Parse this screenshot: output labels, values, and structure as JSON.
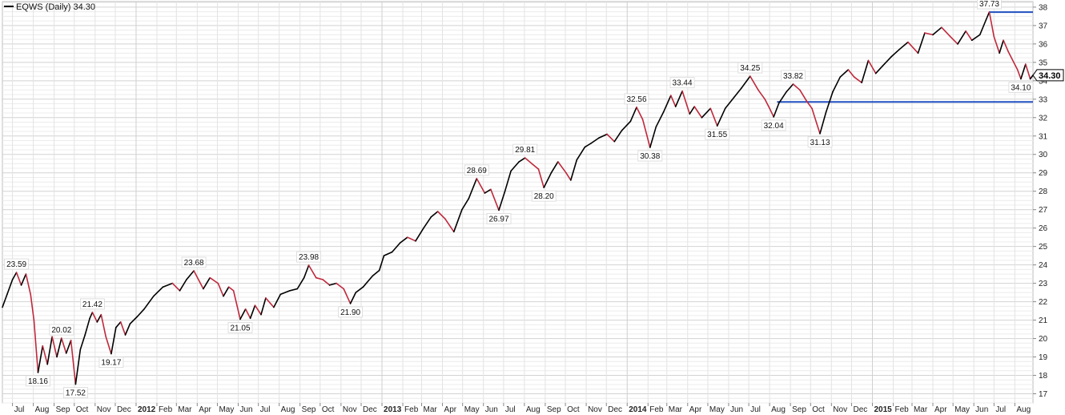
{
  "chart_data": {
    "type": "line",
    "title": "EQWS (Daily) 34.30",
    "legend": {
      "symbol": "EQWS",
      "interval": "(Daily)",
      "last": "34.30"
    },
    "last_price": 34.3,
    "ylim": [
      16.5,
      38.3
    ],
    "y_ticks": [
      17,
      18,
      19,
      20,
      21,
      22,
      23,
      24,
      25,
      26,
      27,
      28,
      29,
      30,
      31,
      32,
      33,
      34,
      35,
      36,
      37,
      38
    ],
    "x_ticks": [
      {
        "label": "Jul",
        "x": "2011-07-01"
      },
      {
        "label": "Aug",
        "x": "2011-08-01"
      },
      {
        "label": "Sep",
        "x": "2011-09-01"
      },
      {
        "label": "Oct",
        "x": "2011-10-01"
      },
      {
        "label": "Nov",
        "x": "2011-11-01"
      },
      {
        "label": "Dec",
        "x": "2011-12-01"
      },
      {
        "label": "2012",
        "x": "2012-01-01",
        "year": true
      },
      {
        "label": "Feb",
        "x": "2012-02-01"
      },
      {
        "label": "Mar",
        "x": "2012-03-01"
      },
      {
        "label": "Apr",
        "x": "2012-04-01"
      },
      {
        "label": "May",
        "x": "2012-05-01"
      },
      {
        "label": "Jun",
        "x": "2012-06-01"
      },
      {
        "label": "Jul",
        "x": "2012-07-01"
      },
      {
        "label": "Aug",
        "x": "2012-08-01"
      },
      {
        "label": "Sep",
        "x": "2012-09-01"
      },
      {
        "label": "Oct",
        "x": "2012-10-01"
      },
      {
        "label": "Nov",
        "x": "2012-11-01"
      },
      {
        "label": "Dec",
        "x": "2012-12-01"
      },
      {
        "label": "2013",
        "x": "2013-01-01",
        "year": true
      },
      {
        "label": "Feb",
        "x": "2013-02-01"
      },
      {
        "label": "Mar",
        "x": "2013-03-01"
      },
      {
        "label": "Apr",
        "x": "2013-04-01"
      },
      {
        "label": "May",
        "x": "2013-05-01"
      },
      {
        "label": "Jun",
        "x": "2013-06-01"
      },
      {
        "label": "Jul",
        "x": "2013-07-01"
      },
      {
        "label": "Aug",
        "x": "2013-08-01"
      },
      {
        "label": "Sep",
        "x": "2013-09-01"
      },
      {
        "label": "Oct",
        "x": "2013-10-01"
      },
      {
        "label": "Nov",
        "x": "2013-11-01"
      },
      {
        "label": "Dec",
        "x": "2013-12-01"
      },
      {
        "label": "2014",
        "x": "2014-01-01",
        "year": true
      },
      {
        "label": "Feb",
        "x": "2014-02-01"
      },
      {
        "label": "Mar",
        "x": "2014-03-01"
      },
      {
        "label": "Apr",
        "x": "2014-04-01"
      },
      {
        "label": "May",
        "x": "2014-05-01"
      },
      {
        "label": "Jun",
        "x": "2014-06-01"
      },
      {
        "label": "Jul",
        "x": "2014-07-01"
      },
      {
        "label": "Aug",
        "x": "2014-08-01"
      },
      {
        "label": "Sep",
        "x": "2014-09-01"
      },
      {
        "label": "Oct",
        "x": "2014-10-01"
      },
      {
        "label": "Nov",
        "x": "2014-11-01"
      },
      {
        "label": "Dec",
        "x": "2014-12-01"
      },
      {
        "label": "2015",
        "x": "2015-01-01",
        "year": true
      },
      {
        "label": "Feb",
        "x": "2015-02-01"
      },
      {
        "label": "Mar",
        "x": "2015-03-01"
      },
      {
        "label": "Apr",
        "x": "2015-04-01"
      },
      {
        "label": "May",
        "x": "2015-05-01"
      },
      {
        "label": "Jun",
        "x": "2015-06-01"
      },
      {
        "label": "Jul",
        "x": "2015-07-01"
      },
      {
        "label": "Aug",
        "x": "2015-08-01"
      }
    ],
    "x_range": [
      "2011-06-16",
      "2015-08-28"
    ],
    "grid": true,
    "y_axis_side": "right",
    "colors": {
      "up": "#000000",
      "down": "#c0283c",
      "support": "#1f4fbf",
      "grid": "#dcdcdc"
    },
    "series": [
      {
        "points": [
          [
            "2011-06-16",
            21.7
          ],
          [
            "2011-06-23",
            22.4
          ],
          [
            "2011-07-01",
            23.2
          ],
          [
            "2011-07-07",
            23.59
          ],
          [
            "2011-07-14",
            22.9
          ],
          [
            "2011-07-21",
            23.5
          ],
          [
            "2011-07-28",
            22.4
          ],
          [
            "2011-08-02",
            21.0
          ],
          [
            "2011-08-08",
            18.16
          ],
          [
            "2011-08-15",
            19.6
          ],
          [
            "2011-08-22",
            18.6
          ],
          [
            "2011-08-29",
            20.1
          ],
          [
            "2011-09-05",
            19.0
          ],
          [
            "2011-09-12",
            20.02
          ],
          [
            "2011-09-19",
            19.2
          ],
          [
            "2011-09-26",
            19.9
          ],
          [
            "2011-10-03",
            17.52
          ],
          [
            "2011-10-10",
            19.4
          ],
          [
            "2011-10-17",
            20.2
          ],
          [
            "2011-10-24",
            21.1
          ],
          [
            "2011-10-28",
            21.42
          ],
          [
            "2011-11-04",
            20.9
          ],
          [
            "2011-11-10",
            21.3
          ],
          [
            "2011-11-17",
            20.1
          ],
          [
            "2011-11-25",
            19.17
          ],
          [
            "2011-12-02",
            20.6
          ],
          [
            "2011-12-09",
            20.9
          ],
          [
            "2011-12-16",
            20.2
          ],
          [
            "2011-12-23",
            20.8
          ],
          [
            "2012-01-03",
            21.2
          ],
          [
            "2012-01-13",
            21.6
          ],
          [
            "2012-01-27",
            22.3
          ],
          [
            "2012-02-10",
            22.8
          ],
          [
            "2012-02-24",
            23.0
          ],
          [
            "2012-03-06",
            22.6
          ],
          [
            "2012-03-16",
            23.2
          ],
          [
            "2012-03-27",
            23.68
          ],
          [
            "2012-04-10",
            22.7
          ],
          [
            "2012-04-20",
            23.3
          ],
          [
            "2012-05-02",
            23.0
          ],
          [
            "2012-05-10",
            22.3
          ],
          [
            "2012-05-18",
            22.8
          ],
          [
            "2012-05-25",
            22.6
          ],
          [
            "2012-06-04",
            21.05
          ],
          [
            "2012-06-12",
            21.6
          ],
          [
            "2012-06-19",
            21.1
          ],
          [
            "2012-06-26",
            21.8
          ],
          [
            "2012-07-05",
            21.3
          ],
          [
            "2012-07-12",
            22.2
          ],
          [
            "2012-07-24",
            21.7
          ],
          [
            "2012-08-03",
            22.4
          ],
          [
            "2012-08-17",
            22.6
          ],
          [
            "2012-08-28",
            22.7
          ],
          [
            "2012-09-07",
            23.3
          ],
          [
            "2012-09-14",
            23.98
          ],
          [
            "2012-09-25",
            23.3
          ],
          [
            "2012-10-05",
            23.2
          ],
          [
            "2012-10-15",
            22.9
          ],
          [
            "2012-10-25",
            23.0
          ],
          [
            "2012-11-05",
            22.7
          ],
          [
            "2012-11-15",
            21.9
          ],
          [
            "2012-11-23",
            22.5
          ],
          [
            "2012-12-04",
            22.8
          ],
          [
            "2012-12-18",
            23.4
          ],
          [
            "2012-12-28",
            23.7
          ],
          [
            "2013-01-04",
            24.5
          ],
          [
            "2013-01-16",
            24.7
          ],
          [
            "2013-01-28",
            25.2
          ],
          [
            "2013-02-08",
            25.5
          ],
          [
            "2013-02-20",
            25.3
          ],
          [
            "2013-03-04",
            26.0
          ],
          [
            "2013-03-15",
            26.6
          ],
          [
            "2013-03-25",
            26.9
          ],
          [
            "2013-04-05",
            26.5
          ],
          [
            "2013-04-18",
            25.8
          ],
          [
            "2013-04-30",
            27.0
          ],
          [
            "2013-05-10",
            27.6
          ],
          [
            "2013-05-22",
            28.69
          ],
          [
            "2013-06-03",
            27.9
          ],
          [
            "2013-06-12",
            28.1
          ],
          [
            "2013-06-24",
            26.97
          ],
          [
            "2013-07-03",
            28.0
          ],
          [
            "2013-07-12",
            29.1
          ],
          [
            "2013-07-24",
            29.6
          ],
          [
            "2013-08-02",
            29.81
          ],
          [
            "2013-08-12",
            29.5
          ],
          [
            "2013-08-22",
            29.2
          ],
          [
            "2013-08-30",
            28.2
          ],
          [
            "2013-09-10",
            29.0
          ],
          [
            "2013-09-20",
            29.6
          ],
          [
            "2013-10-02",
            29.0
          ],
          [
            "2013-10-09",
            28.6
          ],
          [
            "2013-10-18",
            29.7
          ],
          [
            "2013-10-30",
            30.4
          ],
          [
            "2013-11-08",
            30.6
          ],
          [
            "2013-11-20",
            30.9
          ],
          [
            "2013-12-02",
            31.1
          ],
          [
            "2013-12-13",
            30.7
          ],
          [
            "2013-12-24",
            31.3
          ],
          [
            "2014-01-06",
            31.8
          ],
          [
            "2014-01-15",
            32.56
          ],
          [
            "2014-01-24",
            31.9
          ],
          [
            "2014-02-04",
            30.38
          ],
          [
            "2014-02-13",
            31.5
          ],
          [
            "2014-02-24",
            32.3
          ],
          [
            "2014-03-07",
            33.2
          ],
          [
            "2014-03-14",
            32.6
          ],
          [
            "2014-03-24",
            33.44
          ],
          [
            "2014-04-04",
            32.2
          ],
          [
            "2014-04-11",
            32.6
          ],
          [
            "2014-04-22",
            32.0
          ],
          [
            "2014-05-05",
            32.5
          ],
          [
            "2014-05-15",
            31.55
          ],
          [
            "2014-05-27",
            32.5
          ],
          [
            "2014-06-09",
            33.1
          ],
          [
            "2014-06-20",
            33.6
          ],
          [
            "2014-07-03",
            34.25
          ],
          [
            "2014-07-15",
            33.5
          ],
          [
            "2014-07-25",
            33.0
          ],
          [
            "2014-08-01",
            32.5
          ],
          [
            "2014-08-07",
            32.04
          ],
          [
            "2014-08-15",
            32.8
          ],
          [
            "2014-08-26",
            33.4
          ],
          [
            "2014-09-05",
            33.82
          ],
          [
            "2014-09-15",
            33.5
          ],
          [
            "2014-09-25",
            32.9
          ],
          [
            "2014-10-03",
            32.5
          ],
          [
            "2014-10-10",
            31.7
          ],
          [
            "2014-10-15",
            31.13
          ],
          [
            "2014-10-24",
            32.3
          ],
          [
            "2014-11-03",
            33.4
          ],
          [
            "2014-11-14",
            34.2
          ],
          [
            "2014-11-26",
            34.6
          ],
          [
            "2014-12-05",
            34.2
          ],
          [
            "2014-12-16",
            33.9
          ],
          [
            "2014-12-26",
            35.1
          ],
          [
            "2015-01-06",
            34.4
          ],
          [
            "2015-01-16",
            34.8
          ],
          [
            "2015-01-29",
            35.3
          ],
          [
            "2015-02-10",
            35.7
          ],
          [
            "2015-02-23",
            36.1
          ],
          [
            "2015-03-10",
            35.5
          ],
          [
            "2015-03-20",
            36.6
          ],
          [
            "2015-04-01",
            36.5
          ],
          [
            "2015-04-14",
            36.9
          ],
          [
            "2015-04-27",
            36.4
          ],
          [
            "2015-05-08",
            36.0
          ],
          [
            "2015-05-20",
            36.7
          ],
          [
            "2015-05-29",
            36.2
          ],
          [
            "2015-06-10",
            36.5
          ],
          [
            "2015-06-19",
            37.3
          ],
          [
            "2015-06-24",
            37.73
          ],
          [
            "2015-07-01",
            36.4
          ],
          [
            "2015-07-09",
            35.5
          ],
          [
            "2015-07-15",
            36.2
          ],
          [
            "2015-07-22",
            35.6
          ],
          [
            "2015-08-05",
            34.6
          ],
          [
            "2015-08-10",
            34.1
          ],
          [
            "2015-08-17",
            34.9
          ],
          [
            "2015-08-24",
            34.1
          ],
          [
            "2015-08-28",
            34.3
          ]
        ]
      }
    ],
    "annotations": [
      {
        "x": "2011-07-07",
        "y": 23.59,
        "text": "23.59",
        "pos": "above"
      },
      {
        "x": "2011-08-08",
        "y": 18.16,
        "text": "18.16",
        "pos": "below"
      },
      {
        "x": "2011-09-12",
        "y": 20.02,
        "text": "20.02",
        "pos": "above"
      },
      {
        "x": "2011-10-03",
        "y": 17.52,
        "text": "17.52",
        "pos": "below"
      },
      {
        "x": "2011-10-28",
        "y": 21.42,
        "text": "21.42",
        "pos": "above"
      },
      {
        "x": "2011-11-25",
        "y": 19.17,
        "text": "19.17",
        "pos": "below"
      },
      {
        "x": "2012-03-27",
        "y": 23.68,
        "text": "23.68",
        "pos": "above"
      },
      {
        "x": "2012-06-04",
        "y": 21.05,
        "text": "21.05",
        "pos": "below"
      },
      {
        "x": "2012-09-14",
        "y": 23.98,
        "text": "23.98",
        "pos": "above"
      },
      {
        "x": "2012-11-15",
        "y": 21.9,
        "text": "21.90",
        "pos": "below"
      },
      {
        "x": "2013-05-22",
        "y": 28.69,
        "text": "28.69",
        "pos": "above"
      },
      {
        "x": "2013-06-24",
        "y": 26.97,
        "text": "26.97",
        "pos": "below"
      },
      {
        "x": "2013-08-02",
        "y": 29.81,
        "text": "29.81",
        "pos": "above"
      },
      {
        "x": "2013-08-30",
        "y": 28.2,
        "text": "28.20",
        "pos": "below"
      },
      {
        "x": "2014-01-15",
        "y": 32.56,
        "text": "32.56",
        "pos": "above"
      },
      {
        "x": "2014-02-04",
        "y": 30.38,
        "text": "30.38",
        "pos": "below"
      },
      {
        "x": "2014-03-24",
        "y": 33.44,
        "text": "33.44",
        "pos": "above"
      },
      {
        "x": "2014-05-15",
        "y": 31.55,
        "text": "31.55",
        "pos": "below"
      },
      {
        "x": "2014-07-03",
        "y": 34.25,
        "text": "34.25",
        "pos": "above"
      },
      {
        "x": "2014-08-07",
        "y": 32.04,
        "text": "32.04",
        "pos": "below"
      },
      {
        "x": "2014-09-05",
        "y": 33.82,
        "text": "33.82",
        "pos": "above"
      },
      {
        "x": "2014-10-15",
        "y": 31.13,
        "text": "31.13",
        "pos": "below"
      },
      {
        "x": "2015-06-24",
        "y": 37.73,
        "text": "37.73",
        "pos": "above"
      },
      {
        "x": "2015-08-10",
        "y": 34.1,
        "text": "34.10",
        "pos": "below"
      }
    ],
    "trendlines": [
      {
        "x1": "2015-06-24",
        "y1": 37.73,
        "x2": "2015-08-28",
        "y2": 37.73
      },
      {
        "x1": "2014-08-12",
        "y1": 32.85,
        "x2": "2015-08-28",
        "y2": 32.85
      }
    ]
  }
}
